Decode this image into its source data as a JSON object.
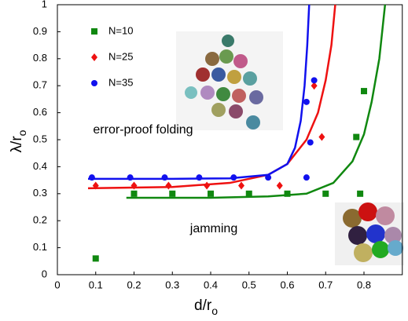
{
  "chart_data": {
    "type": "scatter",
    "ylabel": {
      "main": "λ/r",
      "sub": "o"
    },
    "xlabel": {
      "main": "d/r",
      "sub": "o"
    },
    "annotations": [
      "error-proof folding",
      "jamming"
    ],
    "xlim": [
      0,
      0.9
    ],
    "ylim": [
      0,
      1
    ],
    "xticks": [
      0,
      0.1,
      0.2,
      0.3,
      0.4,
      0.5,
      0.6,
      0.7,
      0.8
    ],
    "yticks": [
      0,
      0.1,
      0.2,
      0.3,
      0.4,
      0.5,
      0.6,
      0.7,
      0.8,
      0.9,
      1
    ],
    "series": [
      {
        "name": "N=10",
        "color": "#108810",
        "marker": "square",
        "x": [
          0.1,
          0.2,
          0.3,
          0.4,
          0.5,
          0.6,
          0.7,
          0.79,
          0.78,
          0.8
        ],
        "values": [
          0.06,
          0.3,
          0.3,
          0.3,
          0.3,
          0.3,
          0.3,
          0.3,
          0.51,
          0.68
        ]
      },
      {
        "name": "N=25",
        "color": "#ee1111",
        "marker": "diamond",
        "x": [
          0.1,
          0.2,
          0.29,
          0.39,
          0.48,
          0.58,
          0.67,
          0.69
        ],
        "values": [
          0.33,
          0.33,
          0.33,
          0.33,
          0.33,
          0.33,
          0.7,
          0.51
        ]
      },
      {
        "name": "N=35",
        "color": "#1111ee",
        "marker": "circle",
        "x": [
          0.09,
          0.19,
          0.28,
          0.37,
          0.46,
          0.55,
          0.65,
          0.65,
          0.66,
          0.67
        ],
        "values": [
          0.36,
          0.36,
          0.36,
          0.36,
          0.36,
          0.36,
          0.36,
          0.64,
          0.49,
          0.72
        ]
      }
    ],
    "fits": [
      {
        "color": "#108810",
        "x": [
          0.18,
          0.4,
          0.55,
          0.65,
          0.72,
          0.77,
          0.8,
          0.82,
          0.84,
          0.855
        ],
        "values": [
          0.285,
          0.285,
          0.29,
          0.3,
          0.34,
          0.42,
          0.52,
          0.64,
          0.8,
          1
        ]
      },
      {
        "color": "#ee1111",
        "x": [
          0.08,
          0.3,
          0.45,
          0.55,
          0.6,
          0.65,
          0.68,
          0.7,
          0.715,
          0.725
        ],
        "values": [
          0.32,
          0.325,
          0.34,
          0.37,
          0.41,
          0.5,
          0.6,
          0.72,
          0.85,
          1
        ]
      },
      {
        "color": "#1111ee",
        "x": [
          0.08,
          0.3,
          0.45,
          0.55,
          0.6,
          0.62,
          0.635,
          0.645,
          0.652,
          0.657
        ],
        "values": [
          0.355,
          0.355,
          0.357,
          0.37,
          0.41,
          0.47,
          0.57,
          0.7,
          0.85,
          1
        ]
      }
    ]
  }
}
